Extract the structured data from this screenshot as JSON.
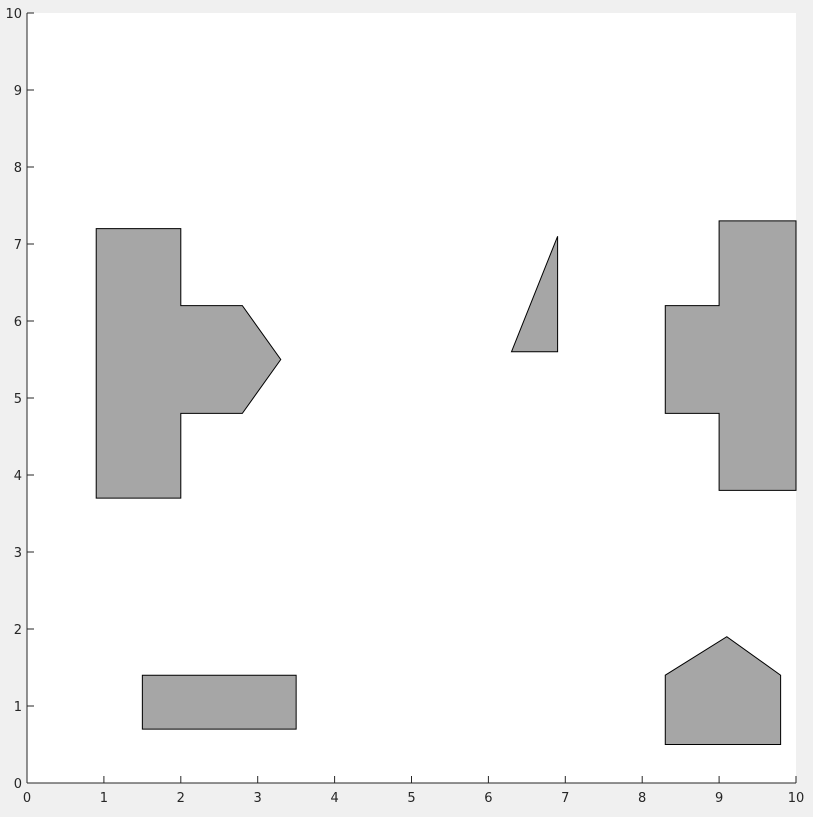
{
  "chart_data": {
    "type": "polygons",
    "title": "",
    "xlabel": "",
    "ylabel": "",
    "xlim": [
      0,
      10
    ],
    "ylim": [
      0,
      10
    ],
    "xticks": [
      "0",
      "1",
      "2",
      "3",
      "4",
      "5",
      "6",
      "7",
      "8",
      "9",
      "10"
    ],
    "yticks": [
      "0",
      "1",
      "2",
      "3",
      "4",
      "5",
      "6",
      "7",
      "8",
      "9",
      "10"
    ],
    "grid": false,
    "colors": {
      "fill": "#a6a6a6",
      "edge": "#000000",
      "axes_bg": "#ffffff",
      "figure_bg": "#f0f0f0"
    },
    "polygons": [
      {
        "id": "left-cross-shape",
        "points": [
          [
            0.9,
            3.7
          ],
          [
            0.9,
            7.2
          ],
          [
            2.0,
            7.2
          ],
          [
            2.0,
            6.2
          ],
          [
            2.8,
            6.2
          ],
          [
            3.3,
            5.5
          ],
          [
            2.8,
            4.8
          ],
          [
            2.0,
            4.8
          ],
          [
            2.0,
            3.7
          ]
        ]
      },
      {
        "id": "triangle-shape",
        "points": [
          [
            6.3,
            5.6
          ],
          [
            6.9,
            7.1
          ],
          [
            6.9,
            5.6
          ]
        ]
      },
      {
        "id": "right-t-shape",
        "points": [
          [
            9.0,
            3.8
          ],
          [
            9.0,
            4.8
          ],
          [
            8.3,
            4.8
          ],
          [
            8.3,
            6.2
          ],
          [
            9.0,
            6.2
          ],
          [
            9.0,
            7.3
          ],
          [
            10.0,
            7.3
          ],
          [
            10.0,
            3.8
          ]
        ]
      },
      {
        "id": "rectangle-shape",
        "points": [
          [
            1.5,
            0.7
          ],
          [
            1.5,
            1.4
          ],
          [
            3.5,
            1.4
          ],
          [
            3.5,
            0.7
          ]
        ]
      },
      {
        "id": "pentagon-shape",
        "points": [
          [
            8.3,
            0.5
          ],
          [
            8.3,
            1.4
          ],
          [
            9.1,
            1.9
          ],
          [
            9.8,
            1.4
          ],
          [
            9.8,
            0.5
          ]
        ]
      }
    ]
  }
}
